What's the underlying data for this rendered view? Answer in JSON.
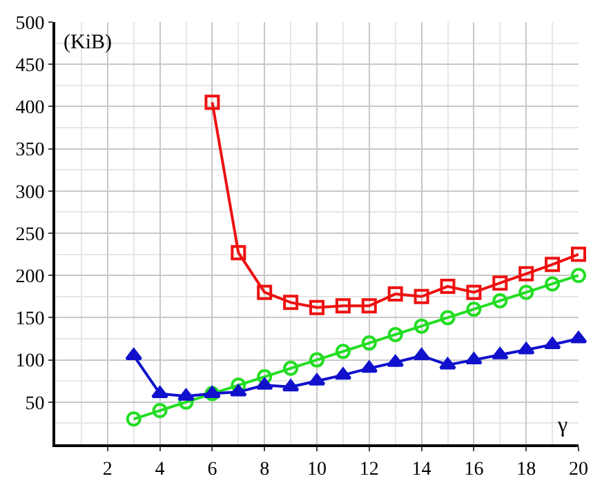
{
  "chart_data": {
    "type": "line",
    "xlabel": "γ",
    "ylabel": "(KiB)",
    "xlim": [
      0,
      20
    ],
    "ylim": [
      0,
      500
    ],
    "xticks": [
      2,
      4,
      6,
      8,
      10,
      12,
      14,
      16,
      18,
      20
    ],
    "yticks": [
      50,
      100,
      150,
      200,
      250,
      300,
      350,
      400,
      450,
      500
    ],
    "grid": true,
    "legend": false,
    "line_style": "solid",
    "series": [
      {
        "color": "#ee1111",
        "marker": "square",
        "x": [
          6,
          7,
          8,
          9,
          10,
          11,
          12,
          13,
          14,
          15,
          16,
          17,
          18,
          19,
          20
        ],
        "values": [
          405,
          227,
          180,
          168,
          162,
          164,
          164,
          178,
          175,
          187,
          180,
          191,
          202,
          213,
          225
        ]
      },
      {
        "color": "#22dd22",
        "marker": "circle",
        "x": [
          3,
          4,
          5,
          6,
          7,
          8,
          9,
          10,
          11,
          12,
          13,
          14,
          15,
          16,
          17,
          18,
          19,
          20
        ],
        "values": [
          30,
          40,
          50,
          60,
          70,
          80,
          90,
          100,
          110,
          120,
          130,
          140,
          150,
          160,
          170,
          180,
          190,
          200
        ]
      },
      {
        "color": "#1111cc",
        "marker": "triangle",
        "x": [
          3,
          4,
          5,
          6,
          7,
          8,
          9,
          10,
          11,
          12,
          13,
          14,
          15,
          16,
          17,
          18,
          19,
          20
        ],
        "values": [
          105,
          60,
          57,
          60,
          62,
          70,
          68,
          75,
          82,
          90,
          97,
          105,
          94,
          100,
          106,
          112,
          118,
          125
        ]
      }
    ]
  }
}
